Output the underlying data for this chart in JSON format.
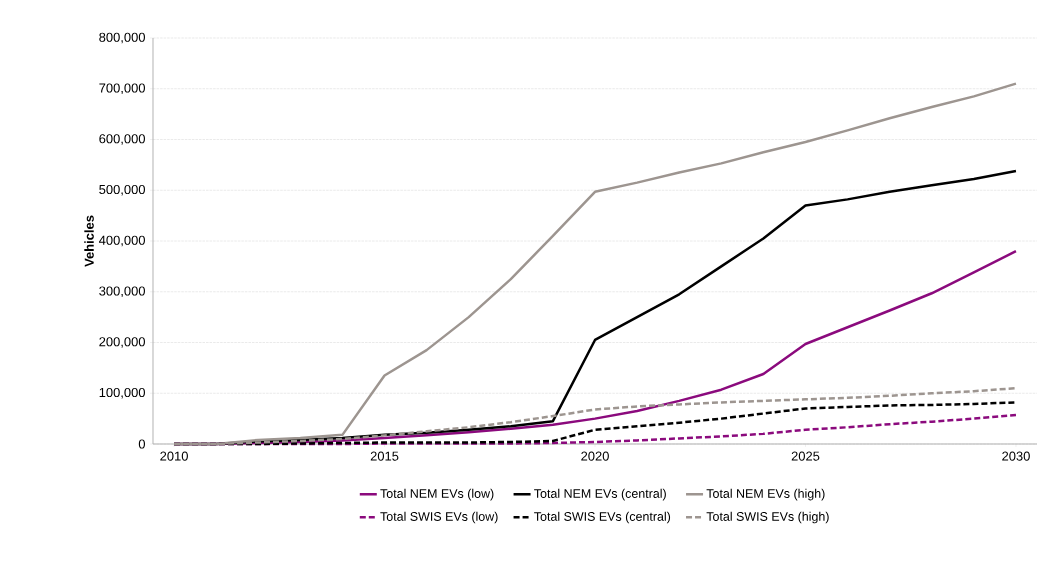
{
  "chart_data": {
    "type": "line",
    "ylabel": "Vehicles",
    "x": [
      2010,
      2011,
      2012,
      2013,
      2014,
      2015,
      2016,
      2017,
      2018,
      2019,
      2020,
      2021,
      2022,
      2023,
      2024,
      2025,
      2026,
      2027,
      2028,
      2029,
      2030
    ],
    "xlim": [
      2009.5,
      2030.5
    ],
    "xticks": [
      2010,
      2015,
      2020,
      2025,
      2030
    ],
    "ylim": [
      0,
      800000
    ],
    "yticks": [
      {
        "value": 0,
        "label": "0"
      },
      {
        "value": 100000,
        "label": "100,000"
      },
      {
        "value": 200000,
        "label": "200,000"
      },
      {
        "value": 300000,
        "label": "300,000"
      },
      {
        "value": 400000,
        "label": "400,000"
      },
      {
        "value": 500000,
        "label": "500,000"
      },
      {
        "value": 600000,
        "label": "600,000"
      },
      {
        "value": 700000,
        "label": "700,000"
      },
      {
        "value": 800000,
        "label": "800,000"
      }
    ],
    "grid": "y",
    "legend": "bottom",
    "marker": "none",
    "series": [
      {
        "name": "Total NEM EVs (low)",
        "color": "#8b0a7d",
        "line_style": "solid",
        "values": [
          0,
          0,
          2000,
          4000,
          7000,
          12000,
          17000,
          23000,
          30000,
          38000,
          50000,
          65000,
          85000,
          107000,
          138000,
          197000,
          230000,
          263000,
          297000,
          338000,
          380000
        ]
      },
      {
        "name": "Total NEM EVs (central)",
        "color": "#000000",
        "line_style": "solid",
        "values": [
          0,
          0,
          5000,
          8000,
          12000,
          18000,
          22000,
          28000,
          35000,
          45000,
          205000,
          250000,
          295000,
          350000,
          405000,
          470000,
          482000,
          497000,
          510000,
          522000,
          538000
        ]
      },
      {
        "name": "Total NEM EVs (high)",
        "color": "#9d9590",
        "line_style": "solid",
        "values": [
          0,
          0,
          8000,
          12000,
          18000,
          135000,
          185000,
          250000,
          325000,
          410000,
          497000,
          515000,
          535000,
          553000,
          575000,
          595000,
          618000,
          642000,
          664000,
          685000,
          710000
        ]
      },
      {
        "name": "Total SWIS EVs (low)",
        "color": "#8b0a7d",
        "line_style": "dashed",
        "values": [
          0,
          0,
          0,
          0,
          0,
          1000,
          1000,
          1000,
          1000,
          2000,
          4000,
          7000,
          11000,
          15000,
          20000,
          28000,
          33000,
          39000,
          44000,
          50000,
          57000
        ]
      },
      {
        "name": "Total SWIS EVs (central)",
        "color": "#000000",
        "line_style": "dashed",
        "values": [
          0,
          0,
          0,
          1000,
          2000,
          3000,
          3000,
          3000,
          4000,
          6000,
          28000,
          35000,
          42000,
          50000,
          60000,
          70000,
          73000,
          76000,
          77000,
          79000,
          82000
        ]
      },
      {
        "name": "Total SWIS EVs (high)",
        "color": "#9d9590",
        "line_style": "dashed",
        "values": [
          0,
          0,
          3000,
          6000,
          10000,
          17000,
          25000,
          33000,
          43000,
          55000,
          68000,
          74000,
          78000,
          82000,
          85000,
          88000,
          91000,
          95000,
          100000,
          104000,
          110000
        ]
      }
    ]
  }
}
